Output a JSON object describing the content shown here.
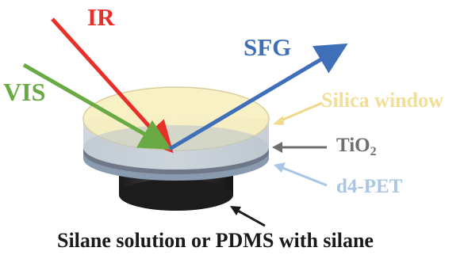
{
  "labels": {
    "ir": "IR",
    "vis": "VIS",
    "sfg": "SFG",
    "silica_window": "Silica window",
    "tio2_main": "TiO",
    "tio2_sub": "2",
    "d4_pet": "d4-PET",
    "bottom": "Silane solution or PDMS with silane"
  },
  "colors": {
    "ir": "#e8302b",
    "vis": "#6aaa45",
    "sfg": "#3e6fb8",
    "silica_window": "#f7e2a3",
    "tio2": "#6e6e6e",
    "d4_pet": "#a9c6e6",
    "bottom_arrow": "#1a1a1a"
  }
}
